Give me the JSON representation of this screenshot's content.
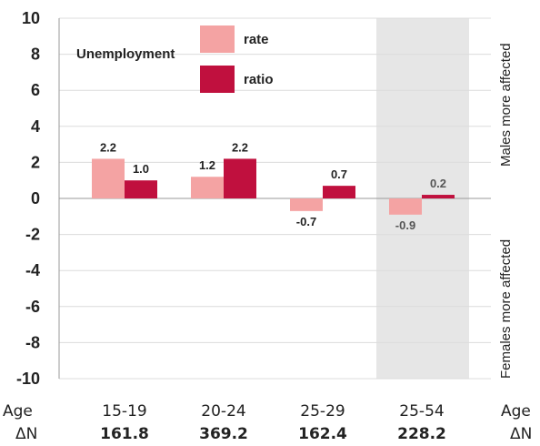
{
  "chart_data": {
    "type": "bar",
    "categories": [
      "15-19",
      "20-24",
      "25-29",
      "25-54"
    ],
    "series": [
      {
        "name": "rate",
        "values": [
          2.2,
          1.2,
          -0.7,
          -0.9
        ]
      },
      {
        "name": "ratio",
        "values": [
          1.0,
          2.2,
          0.7,
          0.2
        ]
      }
    ],
    "data_labels": {
      "rate": [
        "2.2",
        "1.2",
        "-0.7",
        "-0.9"
      ],
      "ratio": [
        "1.0",
        "2.2",
        "0.7",
        "0.2"
      ]
    },
    "legend_title": "Unemployment",
    "legend_placement": "top-center",
    "ylim": [
      -10,
      10
    ],
    "yticks": [
      "10",
      "8",
      "6",
      "4",
      "2",
      "0",
      "-2",
      "-4",
      "-6",
      "-8",
      "-10"
    ],
    "highlighted_category": "25-54",
    "grid": true,
    "right_labels": {
      "top": "Males more affected",
      "bottom": "Females more affected"
    },
    "x_row_label": "Age",
    "n_row_label": "ΔN",
    "delta_n": [
      "161.8",
      "369.2",
      "162.4",
      "228.2"
    ]
  },
  "colors": {
    "rate": "#f4a3a3",
    "ratio": "#c0103e",
    "highlight": "#e6e6e6",
    "grid": "#dcdcdc"
  }
}
